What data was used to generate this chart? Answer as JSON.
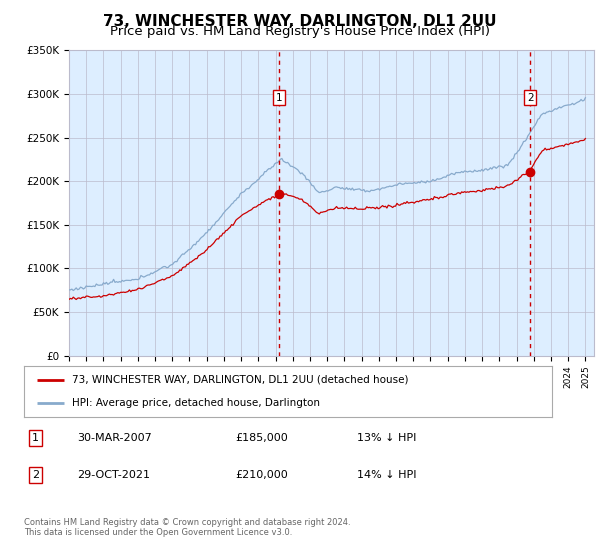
{
  "title": "73, WINCHESTER WAY, DARLINGTON, DL1 2UU",
  "subtitle": "Price paid vs. HM Land Registry's House Price Index (HPI)",
  "title_fontsize": 11,
  "subtitle_fontsize": 9.5,
  "legend_line1": "73, WINCHESTER WAY, DARLINGTON, DL1 2UU (detached house)",
  "legend_line2": "HPI: Average price, detached house, Darlington",
  "purchase1_date": "30-MAR-2007",
  "purchase1_price": 185000,
  "purchase1_label": "1",
  "purchase1_pct": "13% ↓ HPI",
  "purchase2_date": "29-OCT-2021",
  "purchase2_price": 210000,
  "purchase2_label": "2",
  "purchase2_pct": "14% ↓ HPI",
  "footer": "Contains HM Land Registry data © Crown copyright and database right 2024.\nThis data is licensed under the Open Government Licence v3.0.",
  "background_color": "#ffffff",
  "chart_bg_color": "#ddeeff",
  "red_color": "#cc0000",
  "blue_color": "#88aacc",
  "grid_color": "#bbbbcc",
  "ylim": [
    0,
    350000
  ],
  "yticks": [
    0,
    50000,
    100000,
    150000,
    200000,
    250000,
    300000,
    350000
  ],
  "ytick_labels": [
    "£0",
    "£50K",
    "£100K",
    "£150K",
    "£200K",
    "£250K",
    "£300K",
    "£350K"
  ],
  "xstart_year": 1995,
  "xend_year": 2025
}
